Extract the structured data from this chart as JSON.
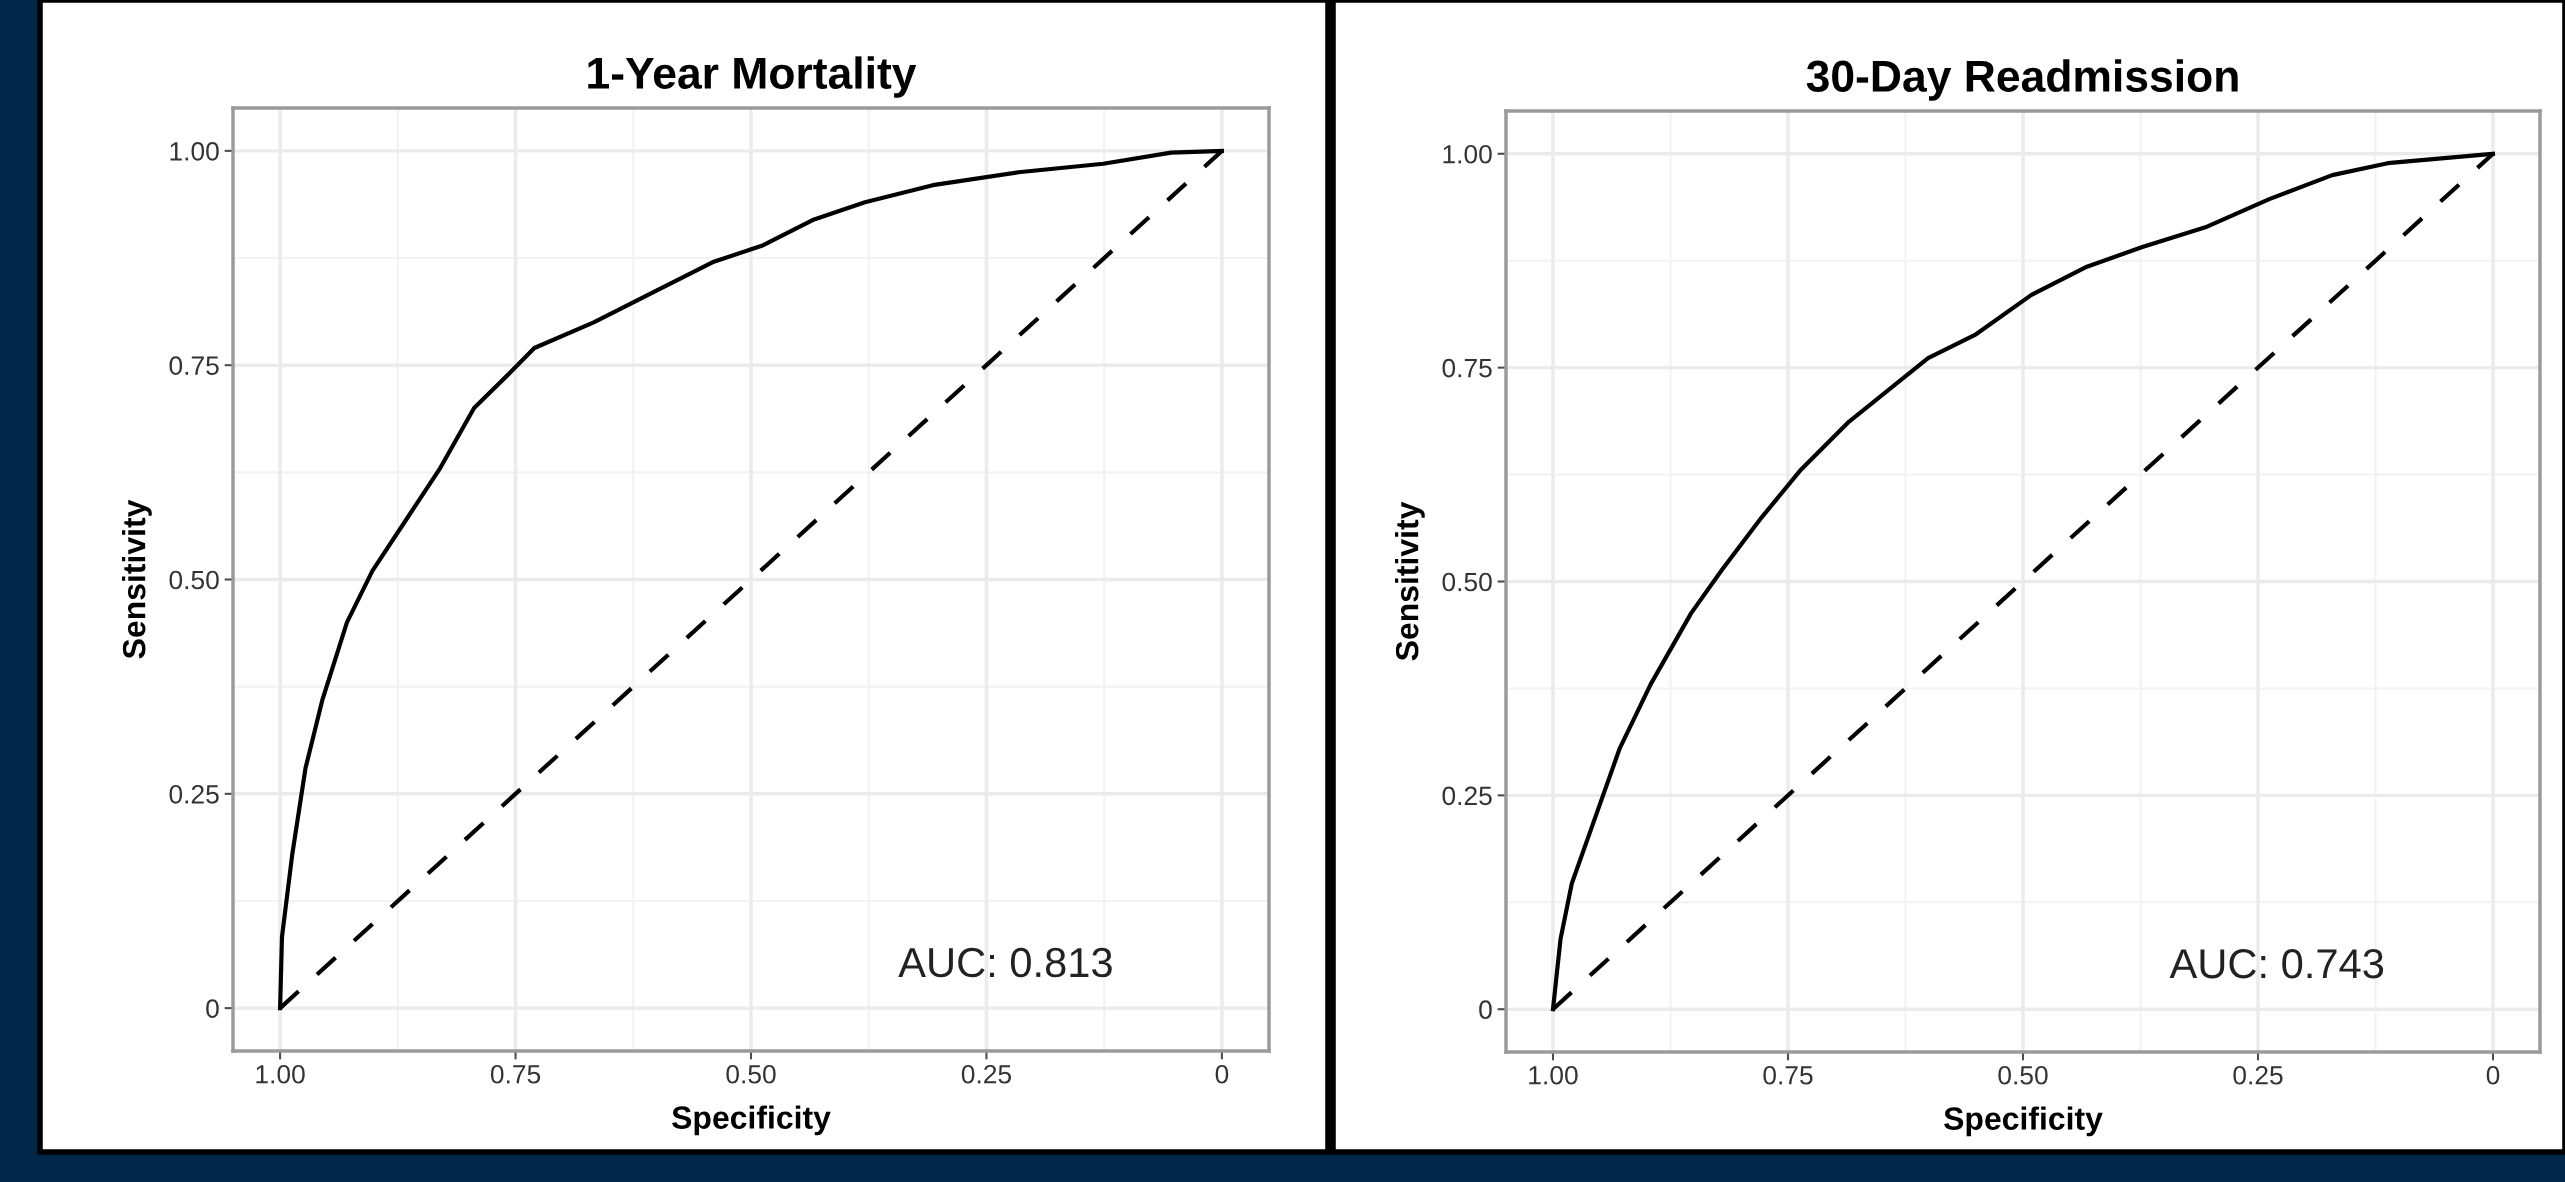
{
  "chart_data": [
    {
      "type": "line",
      "title": "1-Year Mortality",
      "xlabel": "Specificity",
      "ylabel": "Sensitivity",
      "xlim": [
        1.05,
        -0.05
      ],
      "ylim": [
        -0.05,
        1.05
      ],
      "xticks": [
        {
          "value": 1,
          "label": "1.00"
        },
        {
          "value": 0.75,
          "label": "0.75"
        },
        {
          "value": 0.5,
          "label": "0.50"
        },
        {
          "value": 0.25,
          "label": "0.25"
        },
        {
          "value": 0,
          "label": "0"
        }
      ],
      "yticks": [
        {
          "value": 0,
          "label": "0"
        },
        {
          "value": 0.25,
          "label": "0.25"
        },
        {
          "value": 0.5,
          "label": "0.50"
        },
        {
          "value": 0.75,
          "label": "0.75"
        },
        {
          "value": 1,
          "label": "1.00"
        }
      ],
      "grid": true,
      "legend": false,
      "annotations": [
        "AUC: 0.813"
      ],
      "series": [
        {
          "color": "#000000",
          "line_style": "solid",
          "x": [
            1,
            0.998,
            0.987,
            0.973,
            0.955,
            0.929,
            0.902,
            0.866,
            0.83,
            0.794,
            0.757,
            0.73,
            0.667,
            0.613,
            0.541,
            0.487,
            0.433,
            0.379,
            0.307,
            0.216,
            0.126,
            0.054,
            0
          ],
          "values": [
            0,
            0.083,
            0.18,
            0.28,
            0.36,
            0.45,
            0.51,
            0.57,
            0.63,
            0.7,
            0.74,
            0.77,
            0.8,
            0.83,
            0.87,
            0.89,
            0.92,
            0.94,
            0.96,
            0.975,
            0.985,
            0.998,
            1
          ]
        },
        {
          "color": "#000000",
          "line_style": "dashed",
          "x": [
            1,
            0
          ],
          "values": [
            0,
            1
          ]
        }
      ]
    },
    {
      "type": "line",
      "title": "30-Day Readmission",
      "xlabel": "Specificity",
      "ylabel": "Sensitivity",
      "xlim": [
        1.05,
        -0.05
      ],
      "ylim": [
        -0.05,
        1.05
      ],
      "xticks": [
        {
          "value": 1,
          "label": "1.00"
        },
        {
          "value": 0.75,
          "label": "0.75"
        },
        {
          "value": 0.5,
          "label": "0.50"
        },
        {
          "value": 0.25,
          "label": "0.25"
        },
        {
          "value": 0,
          "label": "0"
        }
      ],
      "yticks": [
        {
          "value": 0,
          "label": "0"
        },
        {
          "value": 0.25,
          "label": "0.25"
        },
        {
          "value": 0.5,
          "label": "0.50"
        },
        {
          "value": 0.75,
          "label": "0.75"
        },
        {
          "value": 1,
          "label": "1.00"
        }
      ],
      "grid": true,
      "legend": false,
      "annotations": [
        "AUC: 0.743"
      ],
      "series": [
        {
          "color": "#000000",
          "line_style": "solid",
          "x": [
            1,
            0.992,
            0.98,
            0.959,
            0.929,
            0.896,
            0.853,
            0.82,
            0.778,
            0.736,
            0.685,
            0.643,
            0.601,
            0.55,
            0.491,
            0.432,
            0.373,
            0.306,
            0.238,
            0.171,
            0.112,
            0
          ],
          "values": [
            0,
            0.082,
            0.147,
            0.212,
            0.305,
            0.38,
            0.463,
            0.514,
            0.575,
            0.631,
            0.687,
            0.724,
            0.761,
            0.789,
            0.835,
            0.868,
            0.891,
            0.914,
            0.947,
            0.975,
            0.989,
            1
          ]
        },
        {
          "color": "#000000",
          "line_style": "dashed",
          "x": [
            1,
            0
          ],
          "values": [
            0,
            1
          ]
        }
      ]
    }
  ]
}
